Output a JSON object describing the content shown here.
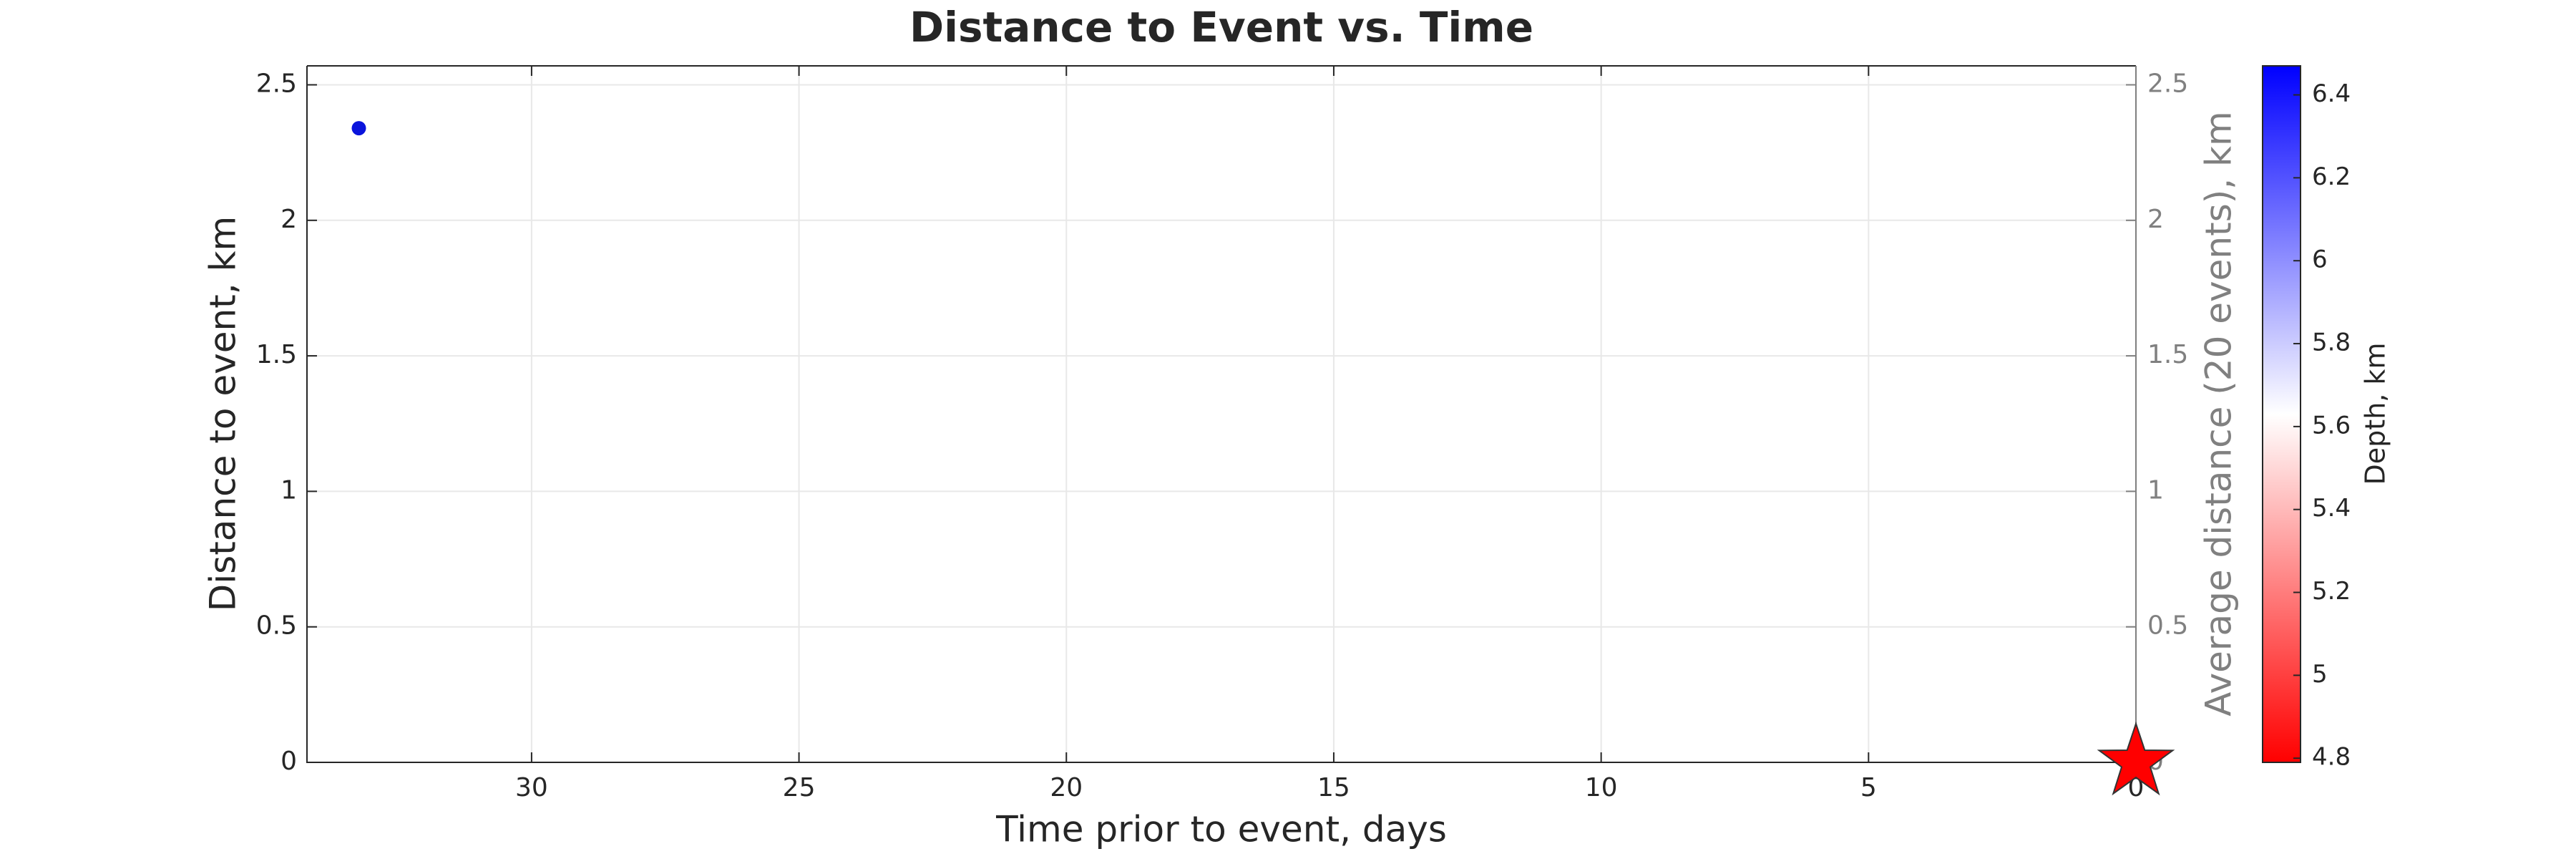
{
  "chart_data": {
    "type": "scatter",
    "title": "Distance to Event vs. Time",
    "x_label": "Time prior to event, days",
    "y_label": "Distance to event, km",
    "y2_label": "Average distance (20 events), km",
    "xlim": [
      34.2,
      0
    ],
    "xticks": [
      30,
      25,
      20,
      15,
      10,
      5,
      0
    ],
    "ylim": [
      0,
      2.57
    ],
    "yticks": [
      0,
      0.5,
      1,
      1.5,
      2,
      2.5
    ],
    "y2lim": [
      0,
      2.57
    ],
    "y2ticks": [
      0,
      0.5,
      1,
      1.5,
      2,
      2.5
    ],
    "grid": true,
    "series": [
      {
        "color": "#0a14dc",
        "marker": "circle",
        "x": [
          33.23
        ],
        "values": [
          2.34
        ]
      },
      {
        "color": "#ff0000",
        "marker": "star",
        "x": [
          0
        ],
        "values": [
          0
        ]
      }
    ],
    "colorbar": {
      "label": "Depth, km",
      "lim": [
        4.79,
        6.47
      ],
      "ticks": [
        4.8,
        5,
        5.2,
        5.4,
        5.6,
        5.8,
        6,
        6.2,
        6.4
      ],
      "colors": [
        "#ff0000",
        "#ffffff",
        "#0000ff"
      ]
    }
  }
}
